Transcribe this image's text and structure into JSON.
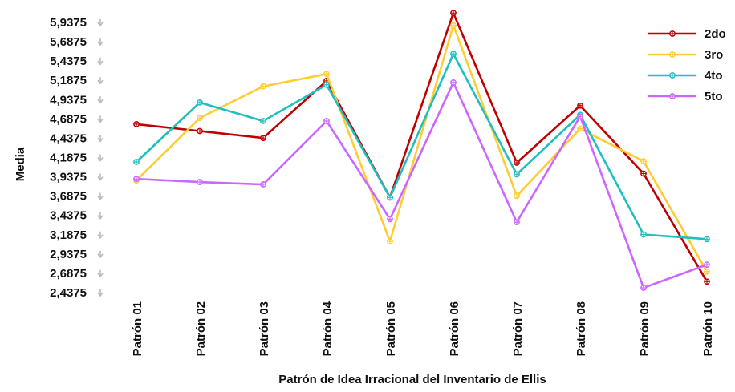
{
  "chart_data": {
    "type": "line",
    "title": "",
    "xlabel": "Patrón de Idea Irracional del Inventario de Ellis",
    "ylabel": "Media",
    "categories": [
      "Patrón 01",
      "Patrón 02",
      "Patrón 03",
      "Patrón 04",
      "Patrón 05",
      "Patrón 06",
      "Patrón 07",
      "Patrón 08",
      "Patrón 09",
      "Patrón 10"
    ],
    "yticks": [
      "2,4375",
      "2,6875",
      "2,9375",
      "3,1875",
      "3,4375",
      "3,6875",
      "3,9375",
      "4,1875",
      "4,4375",
      "4,6875",
      "4,9375",
      "5,1875",
      "5,4375",
      "5,6875",
      "5,9375"
    ],
    "ylim": [
      2.4375,
      5.9375
    ],
    "grid": false,
    "legend_position": "top-right",
    "series": [
      {
        "name": "2do",
        "color": "#C00000",
        "values": [
          4.62,
          4.53,
          4.44,
          5.18,
          3.67,
          6.06,
          4.12,
          4.86,
          3.98,
          2.58
        ]
      },
      {
        "name": "3ro",
        "color": "#FFCC33",
        "values": [
          3.89,
          4.7,
          5.11,
          5.27,
          3.1,
          5.9,
          3.69,
          4.56,
          4.14,
          2.71
        ]
      },
      {
        "name": "4to",
        "color": "#1FBFBF",
        "values": [
          4.13,
          4.9,
          4.66,
          5.13,
          3.67,
          5.53,
          3.97,
          4.74,
          3.19,
          3.13
        ]
      },
      {
        "name": "5to",
        "color": "#CC66FF",
        "values": [
          3.91,
          3.87,
          3.84,
          4.66,
          3.39,
          5.16,
          3.35,
          4.72,
          2.5,
          2.8
        ]
      }
    ]
  }
}
